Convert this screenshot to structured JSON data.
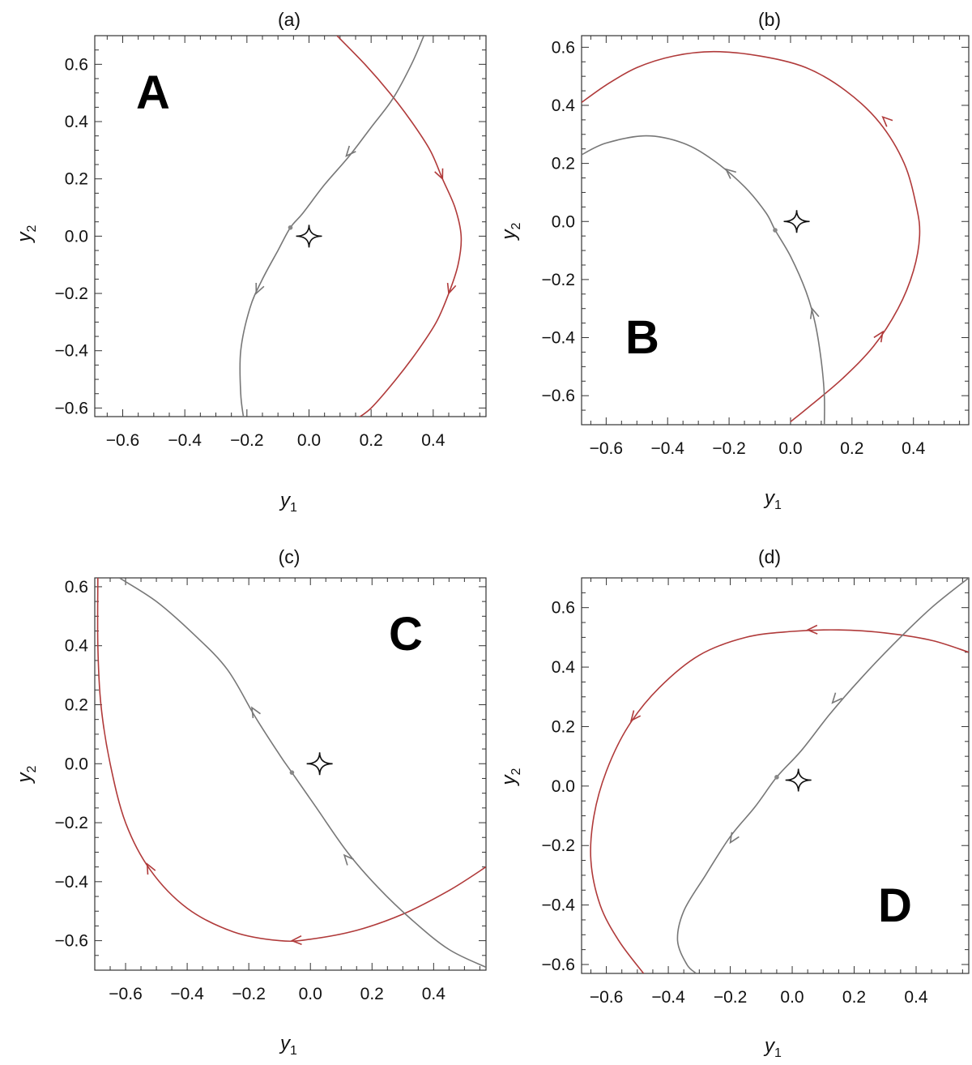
{
  "chart_data": [
    {
      "type": "line",
      "title": "(a)",
      "panel_letter": "A",
      "xlabel": "y1",
      "ylabel": "y2",
      "xlim": [
        -0.69,
        0.57
      ],
      "ylim": [
        -0.63,
        0.7
      ],
      "xticks": [
        -0.6,
        -0.4,
        -0.2,
        0.0,
        0.2,
        0.4
      ],
      "xtick_labels": [
        "−0.6",
        "−0.4",
        "−0.2",
        "0.0",
        "0.2",
        "0.4"
      ],
      "yticks": [
        -0.6,
        -0.4,
        -0.2,
        0.0,
        0.2,
        0.4,
        0.6
      ],
      "ytick_labels": [
        "−0.6",
        "−0.4",
        "−0.2",
        "0.0",
        "0.2",
        "0.4",
        "0.6"
      ],
      "grid": false,
      "caustic": {
        "x": 0.0,
        "y": 0.0
      },
      "lens_point": {
        "x": -0.06,
        "y": 0.03
      },
      "series": [
        {
          "color": "#b03a3a",
          "points": [
            [
              0.09,
              0.7
            ],
            [
              0.18,
              0.6
            ],
            [
              0.26,
              0.5
            ],
            [
              0.33,
              0.4
            ],
            [
              0.39,
              0.3
            ],
            [
              0.43,
              0.2
            ],
            [
              0.47,
              0.1
            ],
            [
              0.49,
              0.0
            ],
            [
              0.48,
              -0.1
            ],
            [
              0.45,
              -0.2
            ],
            [
              0.41,
              -0.3
            ],
            [
              0.35,
              -0.4
            ],
            [
              0.28,
              -0.5
            ],
            [
              0.2,
              -0.6
            ],
            [
              0.15,
              -0.64
            ]
          ],
          "arrows": [
            [
              0.43,
              0.2,
              "down"
            ],
            [
              0.45,
              -0.2,
              "down"
            ]
          ]
        },
        {
          "color": "#777777",
          "points": [
            [
              0.37,
              0.7
            ],
            [
              0.33,
              0.6
            ],
            [
              0.27,
              0.48
            ],
            [
              0.2,
              0.38
            ],
            [
              0.13,
              0.28
            ],
            [
              0.05,
              0.18
            ],
            [
              -0.02,
              0.08
            ],
            [
              -0.06,
              0.03
            ],
            [
              -0.1,
              -0.05
            ],
            [
              -0.15,
              -0.15
            ],
            [
              -0.19,
              -0.25
            ],
            [
              -0.22,
              -0.4
            ],
            [
              -0.22,
              -0.55
            ],
            [
              -0.21,
              -0.64
            ]
          ],
          "arrows": [
            [
              0.12,
              0.28,
              "down"
            ],
            [
              -0.17,
              -0.2,
              "down"
            ]
          ]
        }
      ]
    },
    {
      "type": "line",
      "title": "(b)",
      "panel_letter": "B",
      "xlabel": "y1",
      "ylabel": "y2",
      "xlim": [
        -0.68,
        0.58
      ],
      "ylim": [
        -0.7,
        0.64
      ],
      "xticks": [
        -0.6,
        -0.4,
        -0.2,
        0.0,
        0.2,
        0.4
      ],
      "xtick_labels": [
        "−0.6",
        "−0.4",
        "−0.2",
        "0.0",
        "0.2",
        "0.4"
      ],
      "yticks": [
        -0.6,
        -0.4,
        -0.2,
        0.0,
        0.2,
        0.4,
        0.6
      ],
      "ytick_labels": [
        "−0.6",
        "−0.4",
        "−0.2",
        "0.0",
        "0.2",
        "0.4",
        "0.6"
      ],
      "grid": false,
      "caustic": {
        "x": 0.02,
        "y": 0.0
      },
      "lens_point": {
        "x": -0.05,
        "y": -0.03
      },
      "series": [
        {
          "color": "#b03a3a",
          "points": [
            [
              -0.68,
              0.41
            ],
            [
              -0.6,
              0.47
            ],
            [
              -0.5,
              0.53
            ],
            [
              -0.38,
              0.57
            ],
            [
              -0.25,
              0.585
            ],
            [
              -0.1,
              0.57
            ],
            [
              0.05,
              0.53
            ],
            [
              0.18,
              0.45
            ],
            [
              0.29,
              0.34
            ],
            [
              0.37,
              0.2
            ],
            [
              0.41,
              0.05
            ],
            [
              0.42,
              -0.05
            ],
            [
              0.4,
              -0.17
            ],
            [
              0.35,
              -0.3
            ],
            [
              0.27,
              -0.43
            ],
            [
              0.17,
              -0.54
            ],
            [
              0.07,
              -0.63
            ],
            [
              0.0,
              -0.69
            ]
          ],
          "arrows": [
            [
              0.3,
              0.36,
              "up"
            ],
            [
              0.3,
              -0.38,
              "up"
            ]
          ]
        },
        {
          "color": "#777777",
          "points": [
            [
              -0.68,
              0.23
            ],
            [
              -0.6,
              0.27
            ],
            [
              -0.47,
              0.295
            ],
            [
              -0.35,
              0.27
            ],
            [
              -0.25,
              0.21
            ],
            [
              -0.15,
              0.12
            ],
            [
              -0.08,
              0.03
            ],
            [
              -0.05,
              -0.03
            ],
            [
              0.0,
              -0.12
            ],
            [
              0.05,
              -0.24
            ],
            [
              0.08,
              -0.35
            ],
            [
              0.1,
              -0.48
            ],
            [
              0.11,
              -0.6
            ],
            [
              0.11,
              -0.7
            ]
          ],
          "arrows": [
            [
              -0.21,
              0.18,
              "up"
            ],
            [
              0.07,
              -0.3,
              "up"
            ]
          ]
        }
      ]
    },
    {
      "type": "line",
      "title": "(c)",
      "panel_letter": "C",
      "xlabel": "y1",
      "ylabel": "y2",
      "xlim": [
        -0.7,
        0.57
      ],
      "ylim": [
        -0.7,
        0.63
      ],
      "xticks": [
        -0.6,
        -0.4,
        -0.2,
        0.0,
        0.2,
        0.4
      ],
      "xtick_labels": [
        "−0.6",
        "−0.4",
        "−0.2",
        "0.0",
        "0.2",
        "0.4"
      ],
      "yticks": [
        -0.6,
        -0.4,
        -0.2,
        0.0,
        0.2,
        0.4,
        0.6
      ],
      "ytick_labels": [
        "−0.6",
        "−0.4",
        "−0.2",
        "0.0",
        "0.2",
        "0.4",
        "0.6"
      ],
      "grid": false,
      "caustic": {
        "x": 0.03,
        "y": 0.0
      },
      "lens_point": {
        "x": -0.06,
        "y": -0.03
      },
      "series": [
        {
          "color": "#b03a3a",
          "points": [
            [
              0.57,
              -0.35
            ],
            [
              0.45,
              -0.43
            ],
            [
              0.3,
              -0.51
            ],
            [
              0.15,
              -0.565
            ],
            [
              0.0,
              -0.595
            ],
            [
              -0.1,
              -0.6
            ],
            [
              -0.25,
              -0.57
            ],
            [
              -0.4,
              -0.49
            ],
            [
              -0.52,
              -0.36
            ],
            [
              -0.6,
              -0.2
            ],
            [
              -0.65,
              0.0
            ],
            [
              -0.68,
              0.2
            ],
            [
              -0.69,
              0.4
            ],
            [
              -0.69,
              0.63
            ]
          ],
          "arrows": [
            [
              -0.06,
              -0.6,
              "left"
            ],
            [
              -0.53,
              -0.34,
              "up"
            ]
          ]
        },
        {
          "color": "#777777",
          "points": [
            [
              -0.62,
              0.63
            ],
            [
              -0.5,
              0.55
            ],
            [
              -0.38,
              0.44
            ],
            [
              -0.27,
              0.32
            ],
            [
              -0.18,
              0.16
            ],
            [
              -0.1,
              0.03
            ],
            [
              -0.06,
              -0.03
            ],
            [
              0.02,
              -0.15
            ],
            [
              0.12,
              -0.3
            ],
            [
              0.22,
              -0.42
            ],
            [
              0.33,
              -0.53
            ],
            [
              0.45,
              -0.63
            ],
            [
              0.57,
              -0.69
            ]
          ],
          "arrows": [
            [
              -0.19,
              0.19,
              "up"
            ],
            [
              0.11,
              -0.31,
              "up"
            ]
          ]
        }
      ]
    },
    {
      "type": "line",
      "title": "(d)",
      "panel_letter": "D",
      "xlabel": "y1",
      "ylabel": "y2",
      "xlim": [
        -0.68,
        0.57
      ],
      "ylim": [
        -0.63,
        0.7
      ],
      "xticks": [
        -0.6,
        -0.4,
        -0.2,
        0.0,
        0.2,
        0.4
      ],
      "xtick_labels": [
        "−0.6",
        "−0.4",
        "−0.2",
        "0.0",
        "0.2",
        "0.4"
      ],
      "yticks": [
        -0.6,
        -0.4,
        -0.2,
        0.0,
        0.2,
        0.4,
        0.6
      ],
      "ytick_labels": [
        "−0.6",
        "−0.4",
        "−0.2",
        "0.0",
        "0.2",
        "0.4",
        "0.6"
      ],
      "grid": false,
      "caustic": {
        "x": 0.02,
        "y": 0.02
      },
      "lens_point": {
        "x": -0.05,
        "y": 0.03
      },
      "series": [
        {
          "color": "#b03a3a",
          "points": [
            [
              0.57,
              0.45
            ],
            [
              0.45,
              0.49
            ],
            [
              0.3,
              0.515
            ],
            [
              0.15,
              0.525
            ],
            [
              0.0,
              0.52
            ],
            [
              -0.15,
              0.5
            ],
            [
              -0.3,
              0.44
            ],
            [
              -0.43,
              0.33
            ],
            [
              -0.53,
              0.2
            ],
            [
              -0.6,
              0.05
            ],
            [
              -0.64,
              -0.1
            ],
            [
              -0.65,
              -0.25
            ],
            [
              -0.62,
              -0.4
            ],
            [
              -0.56,
              -0.52
            ],
            [
              -0.48,
              -0.63
            ]
          ],
          "arrows": [
            [
              0.05,
              0.525,
              "left"
            ],
            [
              -0.52,
              0.22,
              "down"
            ]
          ]
        },
        {
          "color": "#777777",
          "points": [
            [
              0.57,
              0.7
            ],
            [
              0.45,
              0.6
            ],
            [
              0.33,
              0.48
            ],
            [
              0.22,
              0.36
            ],
            [
              0.12,
              0.24
            ],
            [
              0.03,
              0.12
            ],
            [
              -0.05,
              0.03
            ],
            [
              -0.12,
              -0.07
            ],
            [
              -0.2,
              -0.17
            ],
            [
              -0.28,
              -0.3
            ],
            [
              -0.35,
              -0.42
            ],
            [
              -0.37,
              -0.52
            ],
            [
              -0.34,
              -0.6
            ],
            [
              -0.31,
              -0.63
            ]
          ],
          "arrows": [
            [
              0.13,
              0.28,
              "down"
            ],
            [
              -0.2,
              -0.19,
              "down"
            ]
          ]
        }
      ]
    }
  ]
}
